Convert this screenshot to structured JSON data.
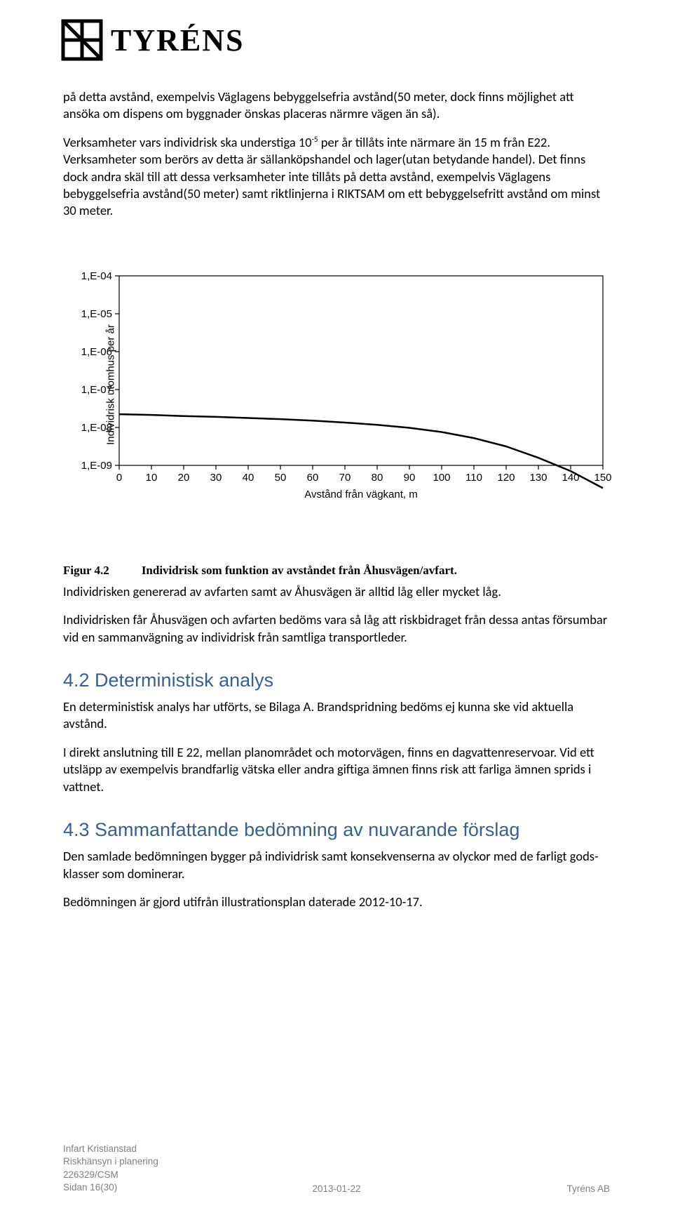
{
  "logo": {
    "text": "TYRÉNS"
  },
  "paragraphs": {
    "p1a": "på detta avstånd, exempelvis Väglagens bebyggelsefria avstånd(50 meter, dock finns möjlighet att ansöka om dispens om byggnader önskas placeras närmre vägen än så).",
    "p1b_pre": "Verksamheter vars individrisk ska understiga 10",
    "p1b_sup": "-5",
    "p1b_post": " per år tillåts inte närmare än 15 m från E22. Verksamheter som berörs av detta är sällanköpshandel och lager(utan betydande handel). Det finns dock andra skäl till att dessa verksamheter inte tillåts på detta avstånd, exempelvis Väglagens bebyggelsefria avstånd(50 meter) samt riktlinjerna i RIKTSAM om ett bebyggelsefritt avstånd om minst 30 meter.",
    "p2": "Individrisken genererad av avfarten samt av Åhusvägen är alltid låg eller mycket låg.",
    "p3": "Individrisken får Åhusvägen och avfarten bedöms vara så låg att riskbidraget från dessa antas försumbar vid en sammanvägning av individrisk från samtliga transportleder.",
    "p4": "En deterministisk analys har utförts, se Bilaga A. Brandspridning bedöms ej kunna ske vid aktuella avstånd.",
    "p5": "I direkt anslutning till E 22, mellan planområdet och motorvägen, finns en dagvattenreservoar. Vid ett utsläpp av exempelvis brandfarlig vätska eller andra giftiga ämnen finns risk att farliga ämnen sprids i vattnet.",
    "p6": "Den samlade bedömningen bygger på individrisk samt konsekvenserna av olyckor med de farligt gods-klasser som dominerar.",
    "p7": "Bedömningen är gjord utifrån illustrationsplan daterade 2012-10-17."
  },
  "figure": {
    "label": "Figur 4.2",
    "caption": "Individrisk som funktion av avståndet från Åhusvägen/avfart."
  },
  "headings": {
    "h42": "4.2 Deterministisk analys",
    "h43": "4.3 Sammanfattande bedömning av nuvarande förslag"
  },
  "chart": {
    "type": "line",
    "ylabel": "Individrisk utomhus per år",
    "xlabel": "Avstånd från vägkant, m",
    "xlim": [
      0,
      150
    ],
    "xtick_step": 10,
    "xticks": [
      "0",
      "10",
      "20",
      "30",
      "40",
      "50",
      "60",
      "70",
      "80",
      "90",
      "100",
      "110",
      "120",
      "130",
      "140",
      "150"
    ],
    "yticks": [
      "1,E-04",
      "1,E-05",
      "1,E-06",
      "1,E-07",
      "1,E-08",
      "1,E-09"
    ],
    "yscale": "log",
    "line_color": "#000000",
    "line_width": 2.5,
    "axis_color": "#000000",
    "axis_width": 1.2,
    "tick_fontsize": 15,
    "label_fontsize": 15,
    "font_family": "Arial",
    "background_color": "#ffffff",
    "series": {
      "x": [
        0,
        10,
        20,
        30,
        40,
        50,
        60,
        70,
        80,
        90,
        100,
        110,
        120,
        130,
        140,
        150
      ],
      "y_exp": [
        -7.65,
        -7.67,
        -7.7,
        -7.72,
        -7.75,
        -7.78,
        -7.82,
        -7.87,
        -7.93,
        -8.01,
        -8.12,
        -8.28,
        -8.5,
        -8.8,
        -9.15,
        -9.6
      ]
    }
  },
  "footer": {
    "l1": "Infart Kristianstad",
    "l2": "Riskhänsyn i planering",
    "l3": "226329/CSM",
    "l4": "Sidan 16(30)",
    "center": "2013-01-22",
    "right": "Tyréns AB"
  }
}
